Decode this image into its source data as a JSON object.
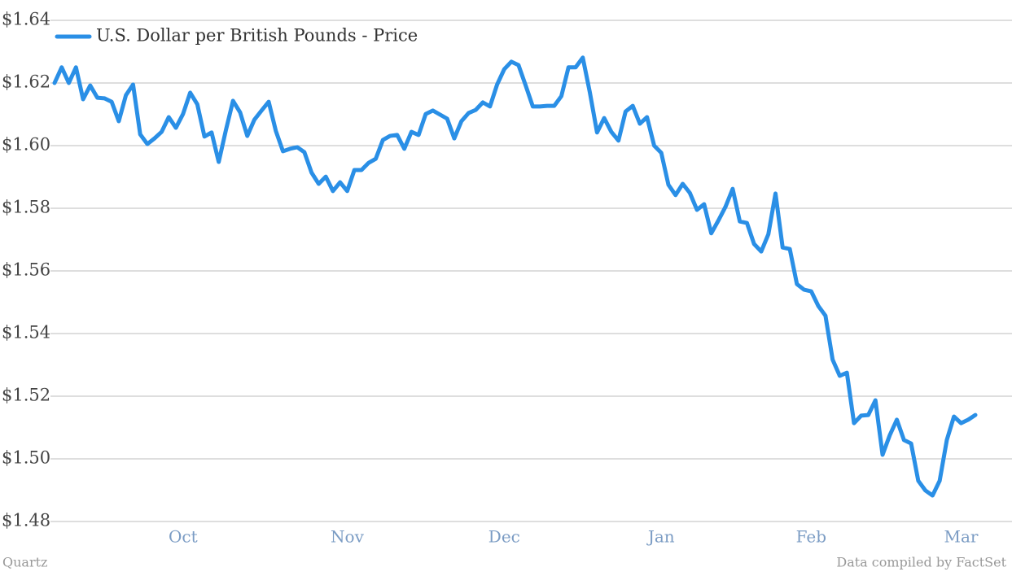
{
  "chart_data": {
    "type": "line",
    "series": [
      {
        "name": "U.S. Dollar per British Pounds - Price",
        "color": "#2a8fe6",
        "values": [
          1.62,
          1.625,
          1.62,
          1.625,
          1.6148,
          1.6192,
          1.6153,
          1.6151,
          1.614,
          1.6078,
          1.6161,
          1.6195,
          1.6036,
          1.6005,
          1.6023,
          1.6044,
          1.6091,
          1.6057,
          1.6101,
          1.6169,
          1.6132,
          1.6029,
          1.6042,
          1.5948,
          1.6049,
          1.6143,
          1.6106,
          1.6031,
          1.6083,
          1.6112,
          1.614,
          1.6047,
          1.5982,
          1.599,
          1.5995,
          1.5979,
          1.5914,
          1.5878,
          1.5901,
          1.5855,
          1.5883,
          1.5855,
          1.5922,
          1.5922,
          1.5945,
          1.5958,
          1.6018,
          1.6031,
          1.6034,
          1.599,
          1.6044,
          1.6034,
          1.6101,
          1.6112,
          1.6099,
          1.6086,
          1.6023,
          1.6078,
          1.6104,
          1.6114,
          1.6138,
          1.6125,
          1.6195,
          1.6244,
          1.6268,
          1.6257,
          1.6192,
          1.6125,
          1.6125,
          1.6127,
          1.6127,
          1.6158,
          1.625,
          1.625,
          1.6281,
          1.6169,
          1.6042,
          1.6088,
          1.6044,
          1.6016,
          1.6109,
          1.6127,
          1.607,
          1.6091,
          1.6,
          1.5977,
          1.5875,
          1.5842,
          1.5878,
          1.5849,
          1.5795,
          1.5813,
          1.572,
          1.5761,
          1.5805,
          1.5862,
          1.5758,
          1.5753,
          1.5686,
          1.5662,
          1.5717,
          1.5847,
          1.5675,
          1.567,
          1.5558,
          1.554,
          1.5535,
          1.5488,
          1.5457,
          1.5317,
          1.5265,
          1.5275,
          1.5114,
          1.5138,
          1.514,
          1.5187,
          1.5013,
          1.5075,
          1.5125,
          1.506,
          1.5049,
          1.493,
          1.4899,
          1.4883,
          1.493,
          1.506,
          1.5135,
          1.5114,
          1.5125,
          1.514
        ]
      }
    ],
    "categories": [
      null,
      null,
      null,
      null,
      null,
      null,
      null,
      null,
      null,
      null,
      null,
      null,
      null,
      null,
      null,
      null,
      null,
      null,
      "Oct",
      null,
      null,
      null,
      null,
      null,
      null,
      null,
      null,
      null,
      null,
      null,
      null,
      null,
      null,
      null,
      null,
      null,
      null,
      null,
      null,
      null,
      null,
      "Nov",
      null,
      null,
      null,
      null,
      null,
      null,
      null,
      null,
      null,
      null,
      null,
      null,
      null,
      null,
      null,
      null,
      null,
      null,
      null,
      null,
      null,
      "Dec",
      null,
      null,
      null,
      null,
      null,
      null,
      null,
      null,
      null,
      null,
      null,
      null,
      null,
      null,
      null,
      null,
      null,
      null,
      null,
      null,
      null,
      "Jan",
      null,
      null,
      null,
      null,
      null,
      null,
      null,
      null,
      null,
      null,
      null,
      null,
      null,
      null,
      null,
      null,
      null,
      null,
      null,
      null,
      "Feb",
      null,
      null,
      null,
      null,
      null,
      null,
      null,
      null,
      null,
      null,
      null,
      null,
      null,
      null,
      null,
      null,
      null,
      null,
      null,
      null,
      "Mar",
      null,
      null
    ],
    "ylim": [
      1.48,
      1.64
    ],
    "yticks": [
      {
        "value": 1.48,
        "label": "$1.48"
      },
      {
        "value": 1.5,
        "label": "$1.50"
      },
      {
        "value": 1.52,
        "label": "$1.52"
      },
      {
        "value": 1.54,
        "label": "$1.54"
      },
      {
        "value": 1.56,
        "label": "$1.56"
      },
      {
        "value": 1.58,
        "label": "$1.58"
      },
      {
        "value": 1.6,
        "label": "$1.60"
      },
      {
        "value": 1.62,
        "label": "$1.62"
      },
      {
        "value": 1.64,
        "label": "$1.64"
      }
    ],
    "grid": true,
    "legend": "top-left",
    "source_left": "Quartz",
    "source_right": "Data compiled by FactSet"
  }
}
